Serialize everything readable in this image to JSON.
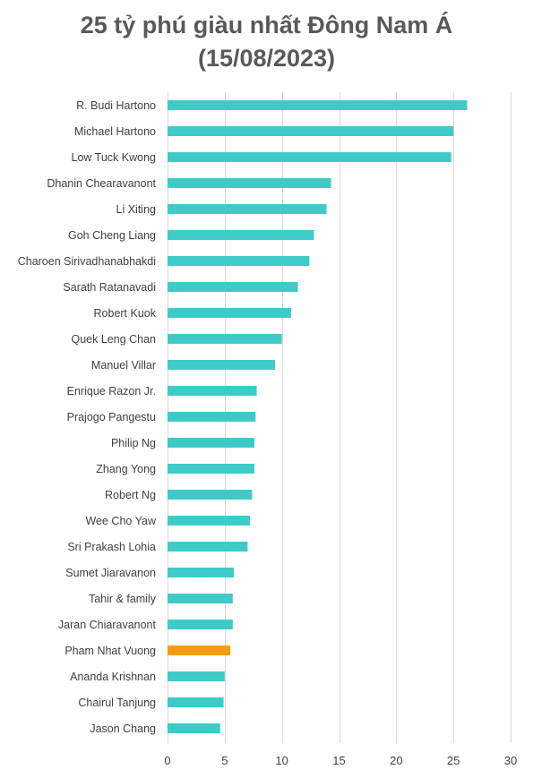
{
  "chart_data": {
    "type": "bar",
    "orientation": "horizontal",
    "title_lines": [
      "25 tỷ phú giàu nhất Đông Nam Á",
      "(15/08/2023)"
    ],
    "categories": [
      "R. Budi Hartono",
      "Michael Hartono",
      "Low Tuck Kwong",
      "Dhanin Chearavanont",
      "Li Xiting",
      "Goh Cheng Liang",
      "Charoen Sirivadhanabhakdi",
      "Sarath Ratanavadi",
      "Robert Kuok",
      "Quek Leng Chan",
      "Manuel Villar",
      "Enrique Razon Jr.",
      "Prajogo Pangestu",
      "Philip Ng",
      "Zhang Yong",
      "Robert Ng",
      "Wee Cho Yaw",
      "Sri Prakash Lohia",
      "Sumet Jiaravanon",
      "Tahir & family",
      "Jaran Chiaravanont",
      "Pham Nhat Vuong",
      "Ananda Krishnan",
      "Chairul Tanjung",
      "Jason Chang"
    ],
    "values": [
      26.2,
      25.0,
      24.8,
      14.3,
      13.9,
      12.8,
      12.4,
      11.4,
      10.8,
      10.0,
      9.4,
      7.8,
      7.7,
      7.6,
      7.6,
      7.4,
      7.2,
      7.0,
      5.8,
      5.7,
      5.7,
      5.5,
      5.0,
      4.9,
      4.6
    ],
    "highlight_category": "Pham Nhat Vuong",
    "xlim": [
      0,
      30
    ],
    "xticks": [
      0,
      5,
      10,
      15,
      20,
      25,
      30
    ],
    "xlabel": "",
    "ylabel": "",
    "grid": "vertical",
    "legend": "none",
    "colors": {
      "bar": "#3ecbc8",
      "highlight": "#f59d0d",
      "grid": "#d9d9d9",
      "title": "#595959",
      "text": "#404040"
    }
  }
}
